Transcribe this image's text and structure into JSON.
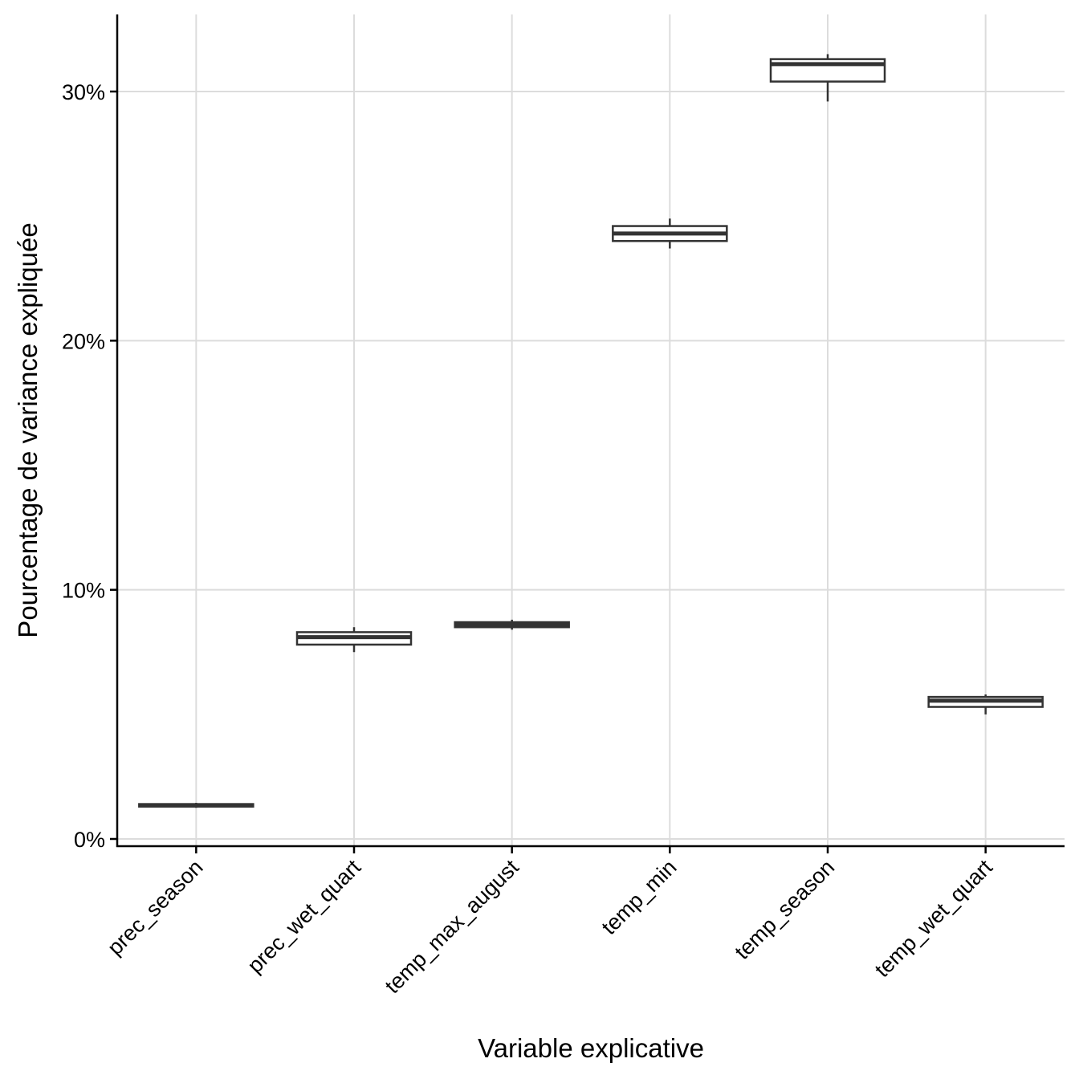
{
  "chart_data": {
    "type": "boxplot",
    "title": "",
    "xlabel": "Variable explicative",
    "ylabel": "Pourcentage de variance expliquée",
    "ylim": [
      -0.3,
      33
    ],
    "y_ticks": [
      0,
      10,
      20,
      30
    ],
    "y_tick_labels": [
      "0%",
      "10%",
      "20%",
      "30%"
    ],
    "grid": true,
    "categories": [
      "prec_season",
      "prec_wet_quart",
      "temp_max_august",
      "temp_min",
      "temp_season",
      "temp_wet_quart"
    ],
    "boxes": [
      {
        "category": "prec_season",
        "whisker_low": 1.25,
        "q1": 1.3,
        "median": 1.35,
        "q3": 1.4,
        "whisker_high": 1.45
      },
      {
        "category": "prec_wet_quart",
        "whisker_low": 7.5,
        "q1": 7.8,
        "median": 8.1,
        "q3": 8.3,
        "whisker_high": 8.5
      },
      {
        "category": "temp_max_august",
        "whisker_low": 8.4,
        "q1": 8.5,
        "median": 8.6,
        "q3": 8.7,
        "whisker_high": 8.8
      },
      {
        "category": "temp_min",
        "whisker_low": 23.7,
        "q1": 24.0,
        "median": 24.3,
        "q3": 24.6,
        "whisker_high": 24.9
      },
      {
        "category": "temp_season",
        "whisker_low": 29.6,
        "q1": 30.4,
        "median": 31.1,
        "q3": 31.3,
        "whisker_high": 31.5
      },
      {
        "category": "temp_wet_quart",
        "whisker_low": 5.0,
        "q1": 5.3,
        "median": 5.55,
        "q3": 5.7,
        "whisker_high": 5.8
      }
    ]
  }
}
